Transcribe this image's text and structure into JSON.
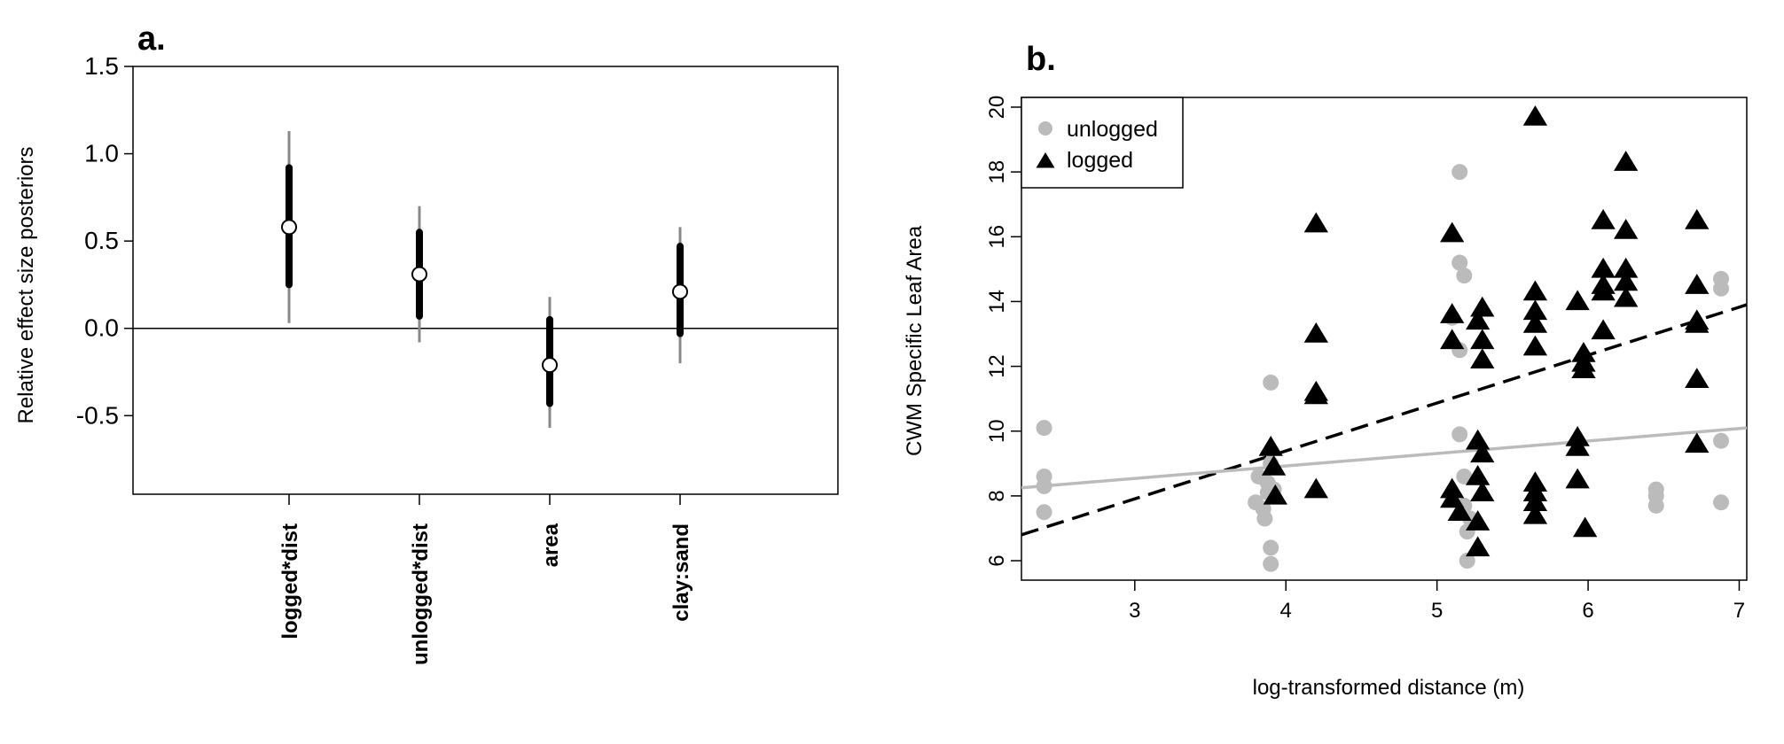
{
  "chart_data": [
    {
      "type": "scatter",
      "panel_label": "a.",
      "ylabel": "Relative effect size posteriors",
      "xlabel": "",
      "ylim": [
        -0.95,
        1.5
      ],
      "yticks": [
        1.5,
        1.0,
        0.5,
        0.0,
        -0.5
      ],
      "ytick_labels": [
        "1.5",
        "1.0",
        "0.5",
        "0.0",
        "-0.5"
      ],
      "categories": [
        "logged*dist",
        "unlogged*dist",
        "area",
        "clay:sand"
      ],
      "zero_line": 0,
      "estimates": [
        {
          "category": "logged*dist",
          "mean": 0.58,
          "inner": [
            0.25,
            0.92
          ],
          "outer": [
            0.03,
            1.13
          ]
        },
        {
          "category": "unlogged*dist",
          "mean": 0.31,
          "inner": [
            0.07,
            0.55
          ],
          "outer": [
            -0.08,
            0.7
          ]
        },
        {
          "category": "area",
          "mean": -0.21,
          "inner": [
            -0.43,
            0.05
          ],
          "outer": [
            -0.57,
            0.18
          ]
        },
        {
          "category": "clay:sand",
          "mean": 0.21,
          "inner": [
            -0.03,
            0.47
          ],
          "outer": [
            -0.2,
            0.58
          ]
        }
      ],
      "colors": {
        "inner": "#000000",
        "outer": "#888888"
      }
    },
    {
      "type": "scatter",
      "panel_label": "b.",
      "xlabel": "log-transformed distance (m)",
      "ylabel": "CWM Specific Leaf Area",
      "xlim": [
        2.25,
        7.05
      ],
      "ylim": [
        5.4,
        20.3
      ],
      "xticks": [
        3,
        4,
        5,
        6,
        7
      ],
      "yticks": [
        6,
        8,
        10,
        12,
        14,
        16,
        18,
        20
      ],
      "legend": {
        "position": "top-left",
        "entries": [
          "unlogged",
          "logged"
        ]
      },
      "colors": {
        "unlogged": "#bbbbbb",
        "logged": "#000000"
      },
      "series": [
        {
          "name": "unlogged",
          "marker": "circle",
          "points": [
            [
              2.4,
              10.1
            ],
            [
              2.4,
              8.6
            ],
            [
              2.4,
              8.3
            ],
            [
              2.4,
              7.5
            ],
            [
              3.8,
              7.8
            ],
            [
              3.82,
              8.6
            ],
            [
              3.85,
              7.6
            ],
            [
              3.86,
              7.3
            ],
            [
              3.88,
              8.4
            ],
            [
              3.88,
              8.1
            ],
            [
              3.9,
              9.0
            ],
            [
              3.9,
              11.5
            ],
            [
              3.9,
              6.4
            ],
            [
              3.9,
              5.9
            ],
            [
              3.92,
              8.2
            ],
            [
              5.1,
              13.5
            ],
            [
              5.15,
              18.0
            ],
            [
              5.15,
              15.2
            ],
            [
              5.15,
              12.5
            ],
            [
              5.15,
              9.9
            ],
            [
              5.18,
              14.8
            ],
            [
              5.18,
              8.6
            ],
            [
              5.18,
              7.7
            ],
            [
              5.2,
              6.9
            ],
            [
              5.2,
              6.0
            ],
            [
              5.22,
              7.3
            ],
            [
              6.45,
              8.2
            ],
            [
              6.45,
              8.0
            ],
            [
              6.45,
              7.7
            ],
            [
              6.88,
              14.7
            ],
            [
              6.88,
              14.4
            ],
            [
              6.88,
              9.7
            ],
            [
              6.88,
              7.8
            ]
          ]
        },
        {
          "name": "logged",
          "marker": "triangle",
          "points": [
            [
              3.9,
              9.5
            ],
            [
              3.92,
              8.9
            ],
            [
              3.93,
              8.0
            ],
            [
              4.2,
              16.4
            ],
            [
              4.2,
              13.0
            ],
            [
              4.2,
              11.2
            ],
            [
              4.2,
              11.1
            ],
            [
              4.2,
              8.2
            ],
            [
              5.1,
              16.1
            ],
            [
              5.1,
              13.6
            ],
            [
              5.1,
              12.8
            ],
            [
              5.1,
              8.2
            ],
            [
              5.1,
              7.9
            ],
            [
              5.15,
              7.5
            ],
            [
              5.27,
              13.4
            ],
            [
              5.27,
              9.7
            ],
            [
              5.27,
              8.6
            ],
            [
              5.27,
              7.2
            ],
            [
              5.27,
              6.4
            ],
            [
              5.3,
              13.8
            ],
            [
              5.3,
              12.8
            ],
            [
              5.3,
              12.2
            ],
            [
              5.3,
              9.3
            ],
            [
              5.3,
              8.1
            ],
            [
              5.65,
              19.7
            ],
            [
              5.65,
              14.3
            ],
            [
              5.65,
              13.7
            ],
            [
              5.65,
              13.3
            ],
            [
              5.65,
              12.6
            ],
            [
              5.65,
              8.4
            ],
            [
              5.65,
              8.1
            ],
            [
              5.65,
              7.8
            ],
            [
              5.65,
              7.4
            ],
            [
              5.93,
              14.0
            ],
            [
              5.93,
              9.8
            ],
            [
              5.93,
              9.5
            ],
            [
              5.93,
              8.5
            ],
            [
              5.97,
              12.4
            ],
            [
              5.97,
              12.1
            ],
            [
              5.97,
              11.9
            ],
            [
              5.98,
              7.0
            ],
            [
              6.1,
              16.5
            ],
            [
              6.1,
              15.0
            ],
            [
              6.1,
              14.5
            ],
            [
              6.1,
              14.3
            ],
            [
              6.1,
              13.1
            ],
            [
              6.25,
              18.3
            ],
            [
              6.25,
              16.2
            ],
            [
              6.25,
              15.0
            ],
            [
              6.25,
              14.6
            ],
            [
              6.25,
              14.1
            ],
            [
              6.72,
              16.5
            ],
            [
              6.72,
              14.5
            ],
            [
              6.72,
              13.4
            ],
            [
              6.72,
              13.3
            ],
            [
              6.72,
              11.6
            ],
            [
              6.72,
              9.6
            ]
          ]
        }
      ],
      "fit_lines": [
        {
          "series": "logged",
          "style": "dashed",
          "x": [
            2.25,
            7.05
          ],
          "y": [
            6.8,
            13.9
          ]
        },
        {
          "series": "unlogged",
          "style": "solid",
          "x": [
            2.25,
            7.05
          ],
          "y": [
            8.25,
            10.1
          ]
        }
      ]
    }
  ]
}
